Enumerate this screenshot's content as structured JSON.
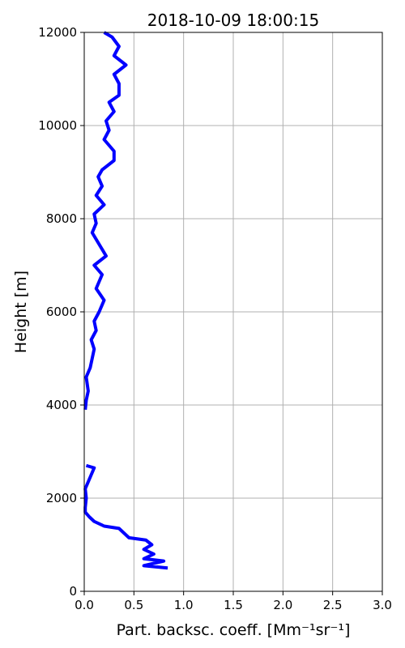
{
  "chart_data": {
    "type": "line",
    "title": "2018-10-09 18:00:15",
    "xlabel": "Part. backsc. coeff. [Mm⁻¹sr⁻¹]",
    "ylabel": "Height [m]",
    "xlim": [
      0,
      3
    ],
    "ylim": [
      0,
      12000
    ],
    "xticks": [
      {
        "value": 0,
        "label": "0.0"
      },
      0.5,
      {
        "value": 1,
        "label": "1.0"
      },
      1.5,
      {
        "value": 2,
        "label": "2.0"
      },
      2.5,
      {
        "value": 3,
        "label": "3.0"
      }
    ],
    "yticks": [
      0,
      2000,
      4000,
      6000,
      8000,
      10000,
      12000
    ],
    "grid": true,
    "color": "#0000ff",
    "x": [
      0.84,
      0.6,
      0.8,
      0.6,
      0.7,
      0.6,
      0.68,
      0.62,
      0.45,
      0.4,
      0.35,
      0.2,
      0.1,
      0.05,
      0.01,
      0.01,
      0.02,
      0.01,
      0.05,
      0.08,
      0.1,
      0.02,
      null,
      0.01,
      0.02,
      0.04,
      0.02,
      0.06,
      0.08,
      0.1,
      0.07,
      0.12,
      0.1,
      0.15,
      0.2,
      0.12,
      0.18,
      0.1,
      0.22,
      0.15,
      0.08,
      0.12,
      0.1,
      0.2,
      0.12,
      0.18,
      0.14,
      0.18,
      0.3,
      0.3,
      0.2,
      0.25,
      0.22,
      0.3,
      0.25,
      0.35,
      0.35,
      0.3,
      0.42,
      0.3,
      0.35,
      0.28,
      0.2
    ],
    "values": [
      500,
      550,
      650,
      700,
      800,
      900,
      1000,
      1100,
      1150,
      1250,
      1350,
      1400,
      1500,
      1600,
      1700,
      1800,
      2000,
      2200,
      2400,
      2550,
      2650,
      2700,
      3300,
      3900,
      4100,
      4300,
      4600,
      4800,
      5000,
      5200,
      5400,
      5600,
      5800,
      6000,
      6250,
      6500,
      6800,
      7000,
      7200,
      7450,
      7700,
      7900,
      8100,
      8300,
      8500,
      8700,
      8900,
      9050,
      9250,
      9450,
      9700,
      9900,
      10100,
      10300,
      10500,
      10650,
      10900,
      11100,
      11300,
      11500,
      11700,
      11900,
      12000
    ]
  }
}
